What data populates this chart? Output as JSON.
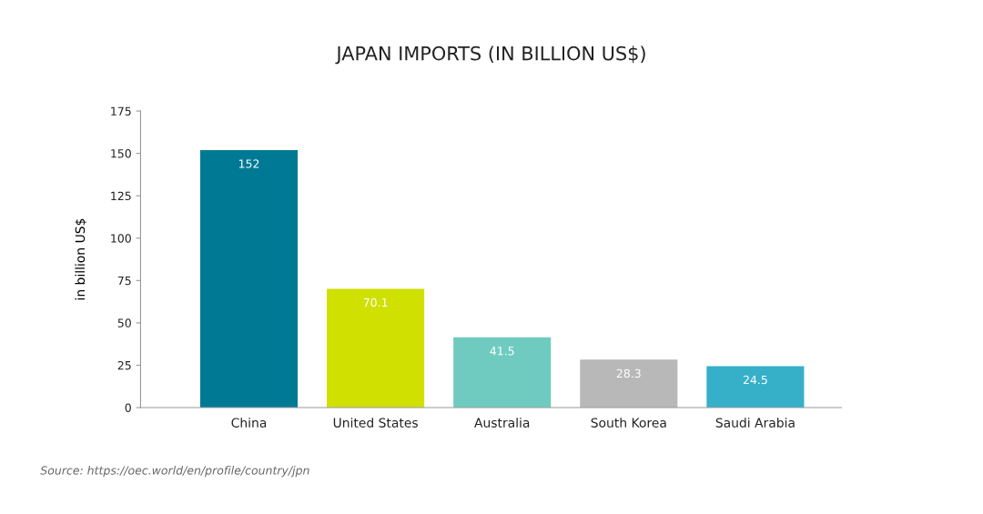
{
  "chart_data": {
    "type": "bar",
    "title": "JAPAN IMPORTS (IN BILLION US$)",
    "ylabel": "in billion US$",
    "categories": [
      "China",
      "United States",
      "Australia",
      "South Korea",
      "Saudi Arabia"
    ],
    "values": [
      152,
      70.1,
      41.5,
      28.3,
      24.5
    ],
    "colors": [
      "#007a94",
      "#d0e000",
      "#6fcbc0",
      "#b8b8b8",
      "#36b0c9"
    ],
    "ylim": [
      0,
      175
    ],
    "yticks": [
      0,
      25,
      50,
      75,
      100,
      125,
      150,
      175
    ],
    "grid": false,
    "data_labels": true,
    "annotations": [
      "Source: https://oec.world/en/profile/country/jpn"
    ]
  }
}
